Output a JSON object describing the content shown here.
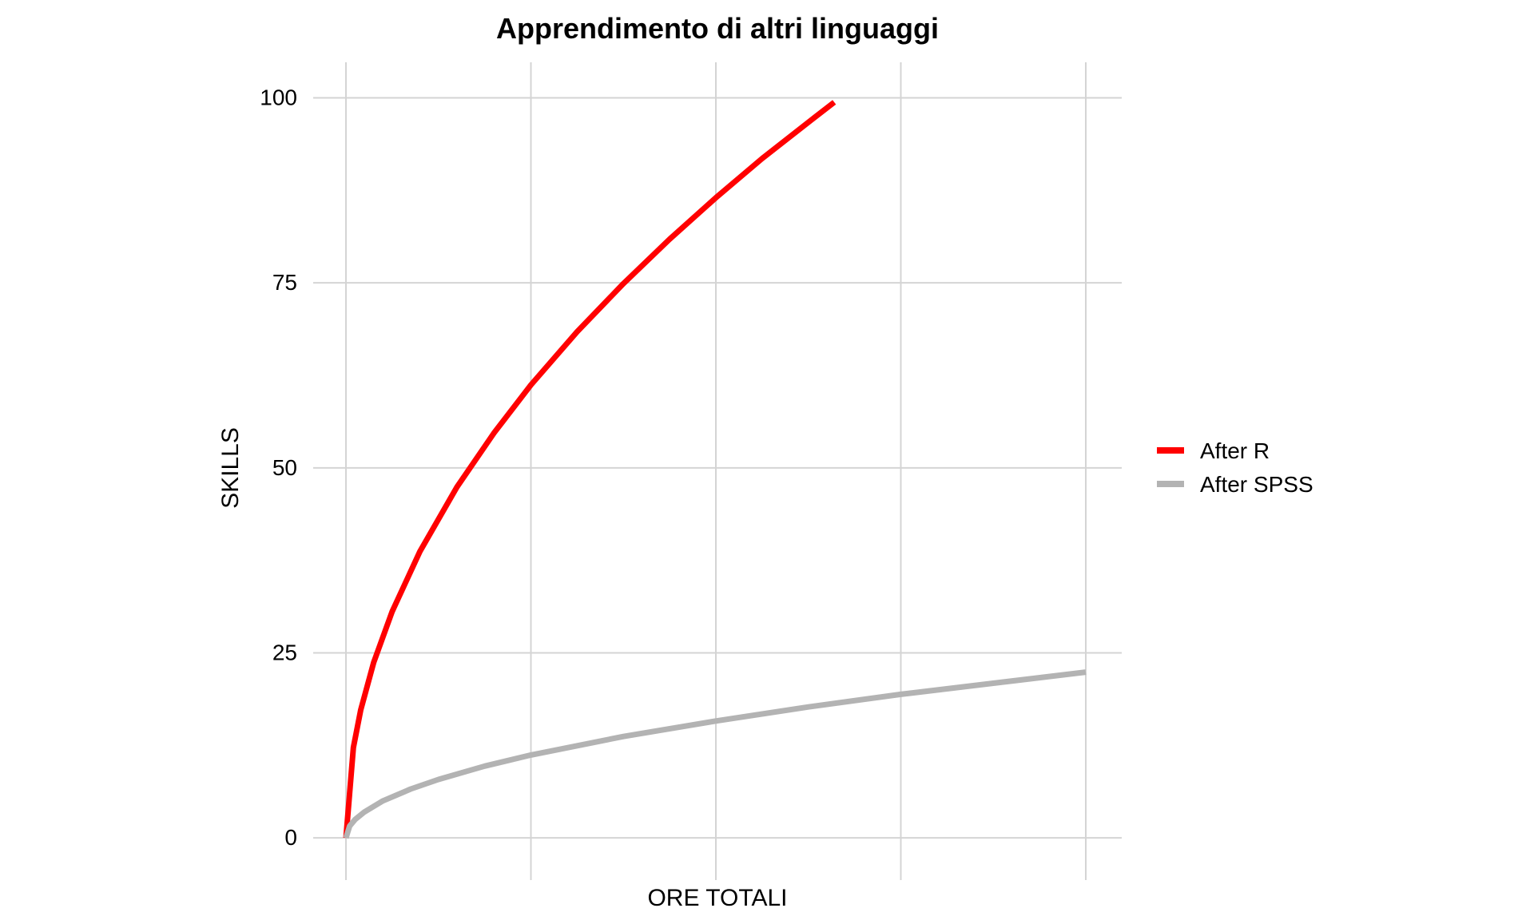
{
  "chart_data": {
    "type": "line",
    "title": "Apprendimento di altri linguaggi",
    "xlabel": "ORE TOTALI",
    "ylabel": "SKILLS",
    "xlim": [
      0,
      4
    ],
    "ylim": [
      -5.7,
      104.8
    ],
    "x_ticks": [
      0,
      1,
      2,
      3,
      4
    ],
    "y_ticks": [
      0,
      25,
      50,
      75,
      100
    ],
    "y_tick_labels": [
      "0",
      "25",
      "50",
      "75",
      "100"
    ],
    "x_tick_labels_shown": false,
    "grid": true,
    "legend_position": "right",
    "series": [
      {
        "name": "After R",
        "color": "#ff0000",
        "x": [
          0,
          0.04,
          0.08,
          0.15,
          0.25,
          0.4,
          0.6,
          0.8,
          1.0,
          1.25,
          1.5,
          1.75,
          2.0,
          2.25,
          2.5,
          2.64
        ],
        "y": [
          0,
          12.2,
          17.3,
          23.7,
          30.6,
          38.7,
          47.4,
          54.7,
          61.2,
          68.4,
          74.9,
          80.9,
          86.5,
          91.8,
          96.7,
          99.4
        ]
      },
      {
        "name": "After SPSS",
        "color": "#b3b3b3",
        "x": [
          0,
          0.02,
          0.05,
          0.1,
          0.2,
          0.35,
          0.5,
          0.75,
          1.0,
          1.5,
          2.0,
          2.5,
          3.0,
          3.5,
          4.0
        ],
        "y": [
          0,
          1.6,
          2.5,
          3.5,
          5.0,
          6.6,
          7.9,
          9.7,
          11.2,
          13.7,
          15.8,
          17.7,
          19.4,
          20.9,
          22.4
        ]
      }
    ]
  }
}
